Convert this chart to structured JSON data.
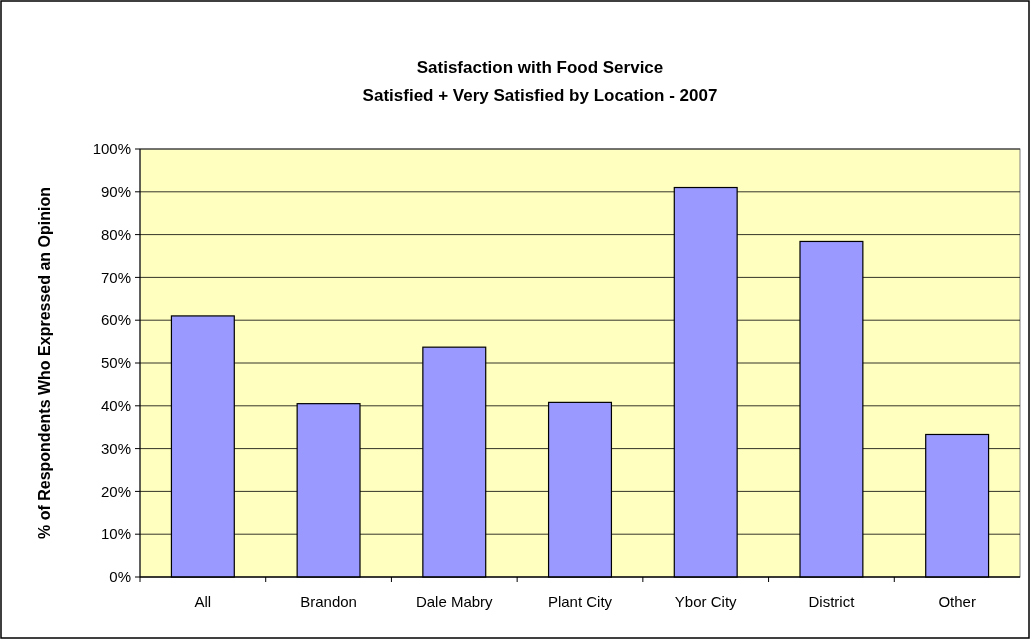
{
  "chart_data": {
    "type": "bar",
    "title": "Satisfaction with Food Service",
    "subtitle": "Satisfied + Very Satisfied by Location - 2007",
    "ylabel": "% of Respondents Who Expressed an Opinion",
    "categories": [
      "All",
      "Brandon",
      "Dale Mabry",
      "Plant City",
      "Ybor City",
      "District",
      "Other"
    ],
    "values": [
      61,
      40.5,
      53.7,
      40.8,
      91,
      78.4,
      33.3
    ],
    "color": "#9999ff",
    "ylim": [
      0,
      100
    ],
    "yticks": [
      {
        "value": 0,
        "label": "0%"
      },
      {
        "value": 10,
        "label": "10%"
      },
      {
        "value": 20,
        "label": "20%"
      },
      {
        "value": 30,
        "label": "30%"
      },
      {
        "value": 40,
        "label": "40%"
      },
      {
        "value": 50,
        "label": "50%"
      },
      {
        "value": 60,
        "label": "60%"
      },
      {
        "value": 70,
        "label": "70%"
      },
      {
        "value": 80,
        "label": "80%"
      },
      {
        "value": 90,
        "label": "90%"
      },
      {
        "value": 100,
        "label": "100%"
      }
    ],
    "grid": "y"
  }
}
